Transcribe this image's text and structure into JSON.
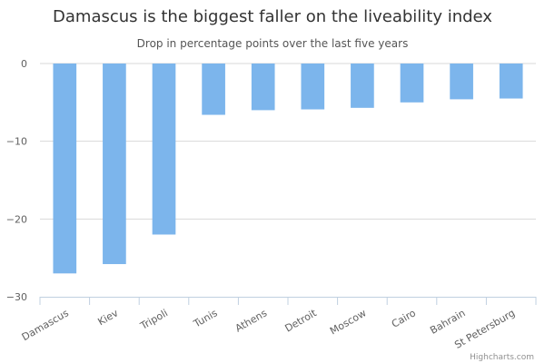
{
  "chart_data": {
    "type": "bar",
    "title": "Damascus is the biggest faller on the liveability index",
    "subtitle": "Drop in percentage points over the last five years",
    "categories": [
      "Damascus",
      "Kiev",
      "Tripoli",
      "Tunis",
      "Athens",
      "Detroit",
      "Moscow",
      "Cairo",
      "Bahrain",
      "St Petersburg"
    ],
    "values": [
      -27,
      -25.8,
      -22,
      -6.6,
      -6,
      -5.9,
      -5.7,
      -5,
      -4.6,
      -4.5
    ],
    "ylim": [
      -30,
      0
    ],
    "yticks": [
      0,
      -10,
      -20,
      -30
    ],
    "ytick_labels": [
      "0",
      "−10",
      "−20",
      "−30"
    ],
    "bar_color": "#7cb5ec",
    "grid": true,
    "xlabel": "",
    "ylabel": ""
  },
  "credits": "Highcharts.com"
}
